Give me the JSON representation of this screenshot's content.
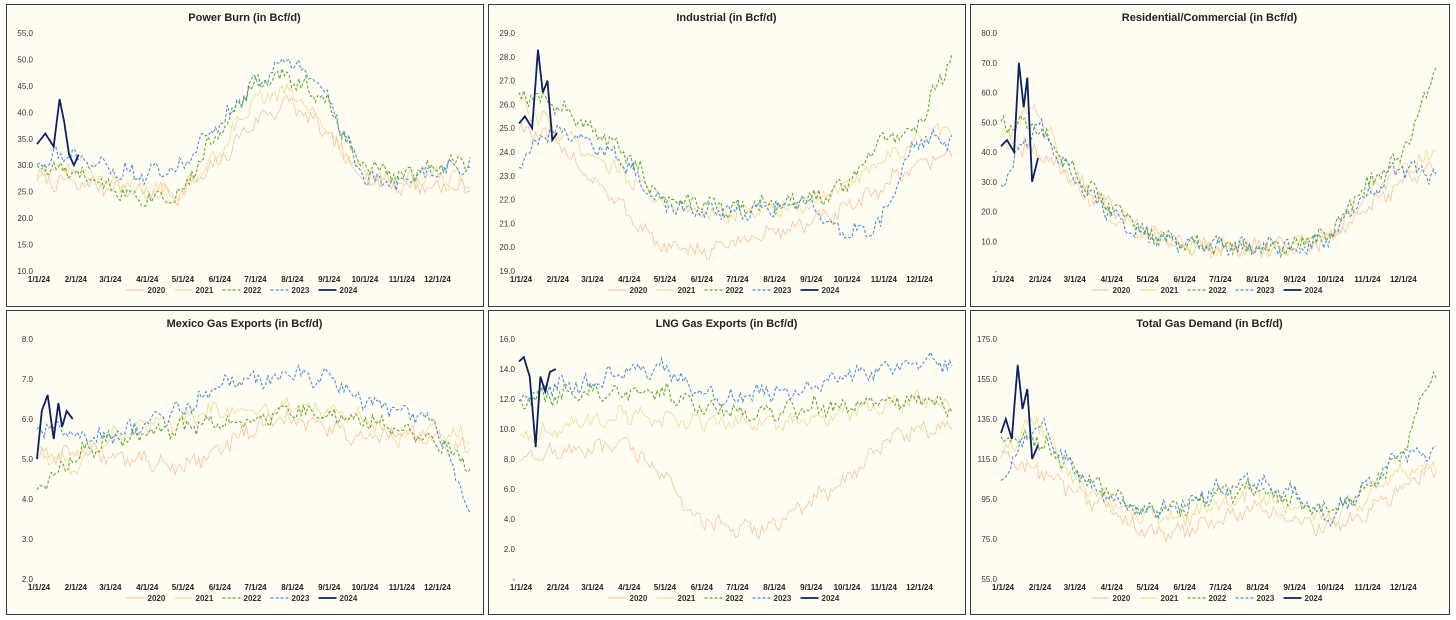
{
  "legend": [
    "2020",
    "2021",
    "2022",
    "2023",
    "2024"
  ],
  "series_colors": {
    "2020": "#f6c9a6",
    "2021": "#f2dc9c",
    "2022": "#63a83a",
    "2023": "#4a90d9",
    "2024": "#0b2163"
  },
  "x_tick_labels": [
    "1/1/24",
    "2/1/24",
    "3/1/24",
    "4/1/24",
    "5/1/24",
    "6/1/24",
    "7/1/24",
    "8/1/24",
    "9/1/24",
    "10/1/24",
    "11/1/24",
    "12/1/24"
  ],
  "chart_data": [
    {
      "type": "line",
      "title": "Power Burn (in Bcf/d)",
      "x_unit": "day of year (Jan 1 – Dec 31)",
      "y_ticks": [
        "10.0",
        "15.0",
        "20.0",
        "25.0",
        "30.0",
        "35.0",
        "40.0",
        "45.0",
        "50.0",
        "55.0"
      ],
      "ylim": [
        10,
        55
      ],
      "legend_position": "bottom",
      "series": [
        {
          "name": "2020",
          "x": [
            1,
            31,
            60,
            91,
            121,
            152,
            182,
            213,
            244,
            274,
            305,
            335,
            365
          ],
          "values": [
            27.5,
            26.5,
            26,
            25,
            24.5,
            30,
            38,
            42,
            36,
            28,
            26,
            26,
            25.5
          ]
        },
        {
          "name": "2021",
          "x": [
            1,
            31,
            60,
            91,
            121,
            152,
            182,
            213,
            244,
            274,
            305,
            335,
            365
          ],
          "values": [
            28,
            29,
            27,
            25.5,
            24.5,
            32,
            42,
            44,
            37,
            28.5,
            27,
            28,
            27
          ]
        },
        {
          "name": "2022",
          "x": [
            1,
            31,
            60,
            91,
            121,
            152,
            182,
            213,
            244,
            274,
            305,
            335,
            365
          ],
          "values": [
            30,
            28.5,
            26,
            24,
            24.5,
            36,
            45,
            47,
            42,
            30,
            28,
            30,
            31
          ]
        },
        {
          "name": "2023",
          "x": [
            1,
            31,
            60,
            91,
            121,
            152,
            182,
            213,
            244,
            274,
            305,
            335,
            365
          ],
          "values": [
            31,
            32,
            29.5,
            28,
            29.5,
            37,
            45,
            50,
            44,
            28,
            26,
            28.5,
            30
          ]
        },
        {
          "name": "2024",
          "x": [
            1,
            8,
            15,
            20,
            24,
            28,
            32,
            36
          ],
          "values": [
            34,
            36,
            33.5,
            42.5,
            38,
            32,
            30,
            32
          ]
        }
      ]
    },
    {
      "type": "line",
      "title": "Industrial (in Bcf/d)",
      "x_unit": "day of year (Jan 1 – Dec 31)",
      "y_ticks": [
        "19.0",
        "20.0",
        "21.0",
        "22.0",
        "23.0",
        "24.0",
        "25.0",
        "26.0",
        "27.0",
        "28.0",
        "29.0"
      ],
      "ylim": [
        19,
        29
      ],
      "legend_position": "bottom",
      "series": [
        {
          "name": "2020",
          "x": [
            1,
            31,
            60,
            91,
            121,
            152,
            182,
            213,
            244,
            274,
            305,
            335,
            365
          ],
          "values": [
            25,
            24.5,
            23,
            21.5,
            20,
            19.8,
            20.2,
            20.6,
            21,
            21.5,
            22.5,
            23.5,
            24
          ]
        },
        {
          "name": "2021",
          "x": [
            1,
            31,
            60,
            91,
            121,
            152,
            182,
            213,
            244,
            274,
            305,
            335,
            365
          ],
          "values": [
            26,
            25,
            24,
            23,
            21.8,
            21.5,
            21.4,
            21.6,
            21.8,
            22.5,
            23.5,
            24.5,
            25
          ]
        },
        {
          "name": "2022",
          "x": [
            1,
            31,
            60,
            91,
            121,
            152,
            182,
            213,
            244,
            274,
            305,
            335,
            365
          ],
          "values": [
            26.5,
            26,
            25,
            24,
            22,
            21.8,
            21.6,
            21.8,
            22,
            22.5,
            24.5,
            25,
            28
          ]
        },
        {
          "name": "2023",
          "x": [
            1,
            31,
            60,
            91,
            121,
            152,
            182,
            213,
            244,
            274,
            305,
            335,
            365
          ],
          "values": [
            23.5,
            25,
            24.5,
            23.5,
            21.8,
            21.5,
            21.5,
            21.7,
            22,
            20.5,
            21,
            24.5,
            24.5
          ]
        },
        {
          "name": "2024",
          "x": [
            1,
            6,
            12,
            17,
            21,
            25,
            29,
            33
          ],
          "values": [
            25.2,
            25.5,
            25,
            28.3,
            26.5,
            27,
            24.5,
            24.8
          ]
        }
      ]
    },
    {
      "type": "line",
      "title": "Residential/Commercial (in Bcf/d)",
      "x_unit": "day of year (Jan 1 – Dec 31)",
      "y_ticks": [
        "-",
        "10.0",
        "20.0",
        "30.0",
        "40.0",
        "50.0",
        "60.0",
        "70.0",
        "80.0"
      ],
      "ylim": [
        0,
        80
      ],
      "legend_position": "bottom",
      "series": [
        {
          "name": "2020",
          "x": [
            1,
            31,
            60,
            91,
            121,
            152,
            182,
            213,
            244,
            274,
            305,
            335,
            365
          ],
          "values": [
            42,
            40,
            32,
            22,
            14,
            9,
            8,
            8,
            8,
            10,
            20,
            30,
            36
          ]
        },
        {
          "name": "2021",
          "x": [
            1,
            31,
            60,
            91,
            121,
            152,
            182,
            213,
            244,
            274,
            305,
            335,
            365
          ],
          "values": [
            45,
            55,
            30,
            20,
            12,
            9,
            8,
            8,
            8,
            11,
            24,
            34,
            40
          ]
        },
        {
          "name": "2022",
          "x": [
            1,
            31,
            60,
            91,
            121,
            152,
            182,
            213,
            244,
            274,
            305,
            335,
            365
          ],
          "values": [
            50,
            48,
            35,
            22,
            13,
            9,
            8,
            8,
            8,
            12,
            28,
            38,
            68
          ]
        },
        {
          "name": "2023",
          "x": [
            1,
            31,
            60,
            91,
            121,
            152,
            182,
            213,
            244,
            274,
            305,
            335,
            365
          ],
          "values": [
            30,
            50,
            32,
            20,
            12,
            9,
            8,
            8,
            8,
            10,
            25,
            35,
            32
          ]
        },
        {
          "name": "2024",
          "x": [
            1,
            6,
            12,
            16,
            20,
            23,
            27,
            32
          ],
          "values": [
            42,
            44,
            40,
            70,
            55,
            65,
            30,
            38
          ]
        }
      ]
    },
    {
      "type": "line",
      "title": "Mexico Gas Exports (in Bcf/d)",
      "x_unit": "day of year (Jan 1 – Dec 31)",
      "y_ticks": [
        "2.0",
        "3.0",
        "4.0",
        "5.0",
        "6.0",
        "7.0",
        "8.0"
      ],
      "ylim": [
        2,
        8
      ],
      "legend_position": "bottom",
      "series": [
        {
          "name": "2020",
          "x": [
            1,
            31,
            60,
            91,
            121,
            152,
            182,
            213,
            244,
            274,
            305,
            335,
            365
          ],
          "values": [
            5,
            5.2,
            5.1,
            5,
            4.8,
            5.2,
            5.8,
            6,
            5.8,
            5.5,
            5.6,
            5.5,
            5.2
          ]
        },
        {
          "name": "2021",
          "x": [
            1,
            31,
            60,
            91,
            121,
            152,
            182,
            213,
            244,
            274,
            305,
            335,
            365
          ],
          "values": [
            5.2,
            4.8,
            5.5,
            5.8,
            6,
            6.2,
            6.2,
            6.3,
            6.2,
            6,
            5.5,
            5.8,
            5.5
          ]
        },
        {
          "name": "2022",
          "x": [
            1,
            31,
            60,
            91,
            121,
            152,
            182,
            213,
            244,
            274,
            305,
            335,
            365
          ],
          "values": [
            4.2,
            5,
            5.5,
            5.6,
            5.8,
            5.9,
            6,
            6.2,
            6.1,
            6,
            5.8,
            5.5,
            4.8
          ]
        },
        {
          "name": "2023",
          "x": [
            1,
            31,
            60,
            91,
            121,
            152,
            182,
            213,
            244,
            274,
            305,
            335,
            365
          ],
          "values": [
            5.8,
            5.6,
            5.6,
            5.8,
            6.2,
            6.8,
            7,
            7.1,
            7,
            6.5,
            6.2,
            6,
            3.7
          ]
        },
        {
          "name": "2024",
          "x": [
            1,
            5,
            10,
            15,
            19,
            22,
            26,
            31
          ],
          "values": [
            5,
            6.2,
            6.6,
            5.5,
            6.4,
            5.8,
            6.2,
            6
          ]
        }
      ]
    },
    {
      "type": "line",
      "title": "LNG Gas Exports (in Bcf/d)",
      "x_unit": "day of year (Jan 1 – Dec 31)",
      "y_ticks": [
        "-",
        "2.0",
        "4.0",
        "6.0",
        "8.0",
        "10.0",
        "12.0",
        "14.0",
        "16.0"
      ],
      "ylim": [
        0,
        16
      ],
      "legend_position": "bottom",
      "series": [
        {
          "name": "2020",
          "x": [
            1,
            31,
            60,
            91,
            121,
            152,
            182,
            213,
            244,
            274,
            305,
            335,
            365
          ],
          "values": [
            8,
            8.5,
            8.5,
            9,
            7,
            4,
            3.2,
            3.5,
            5,
            6.5,
            9,
            10,
            10
          ]
        },
        {
          "name": "2021",
          "x": [
            1,
            31,
            60,
            91,
            121,
            152,
            182,
            213,
            244,
            274,
            305,
            335,
            365
          ],
          "values": [
            9.5,
            10,
            10.5,
            11,
            10.5,
            10.5,
            10.5,
            10.5,
            10.5,
            11,
            11.5,
            12,
            11.5
          ]
        },
        {
          "name": "2022",
          "x": [
            1,
            31,
            60,
            91,
            121,
            152,
            182,
            213,
            244,
            274,
            305,
            335,
            365
          ],
          "values": [
            11.8,
            12.2,
            12.5,
            12.5,
            12.5,
            11.5,
            11.2,
            11.2,
            11.5,
            11.5,
            12,
            12,
            11.5
          ]
        },
        {
          "name": "2023",
          "x": [
            1,
            31,
            60,
            91,
            121,
            152,
            182,
            213,
            244,
            274,
            305,
            335,
            365
          ],
          "values": [
            12,
            12.8,
            13,
            14,
            14,
            12.5,
            12,
            12.5,
            12.5,
            13.5,
            14,
            14.5,
            14.5
          ]
        },
        {
          "name": "2024",
          "x": [
            1,
            5,
            10,
            15,
            19,
            23,
            27,
            32
          ],
          "values": [
            14.5,
            14.8,
            13.5,
            8.8,
            13.5,
            12.5,
            13.8,
            14
          ]
        }
      ]
    },
    {
      "type": "line",
      "title": "Total Gas Demand (in Bcf/d)",
      "x_unit": "day of year (Jan 1 – Dec 31)",
      "y_ticks": [
        "55.0",
        "75.0",
        "95.0",
        "115.0",
        "135.0",
        "155.0",
        "175.0"
      ],
      "ylim": [
        55,
        175
      ],
      "legend_position": "bottom",
      "series": [
        {
          "name": "2020",
          "x": [
            1,
            31,
            60,
            91,
            121,
            152,
            182,
            213,
            244,
            274,
            305,
            335,
            365
          ],
          "values": [
            115,
            110,
            100,
            90,
            78,
            78,
            85,
            90,
            85,
            80,
            88,
            100,
            110
          ]
        },
        {
          "name": "2021",
          "x": [
            1,
            31,
            60,
            91,
            121,
            152,
            182,
            213,
            244,
            274,
            305,
            335,
            365
          ],
          "values": [
            118,
            135,
            105,
            95,
            85,
            85,
            92,
            98,
            92,
            85,
            95,
            108,
            112
          ]
        },
        {
          "name": "2022",
          "x": [
            1,
            31,
            60,
            91,
            121,
            152,
            182,
            213,
            244,
            274,
            305,
            335,
            365
          ],
          "values": [
            125,
            125,
            110,
            98,
            88,
            90,
            98,
            100,
            95,
            88,
            100,
            115,
            160
          ]
        },
        {
          "name": "2023",
          "x": [
            1,
            31,
            60,
            91,
            121,
            152,
            182,
            213,
            244,
            274,
            305,
            335,
            365
          ],
          "values": [
            105,
            135,
            110,
            95,
            88,
            92,
            100,
            105,
            98,
            85,
            100,
            118,
            118
          ]
        },
        {
          "name": "2024",
          "x": [
            1,
            5,
            10,
            15,
            19,
            23,
            27,
            32
          ],
          "values": [
            128,
            135,
            125,
            162,
            140,
            150,
            115,
            122
          ]
        }
      ]
    }
  ]
}
